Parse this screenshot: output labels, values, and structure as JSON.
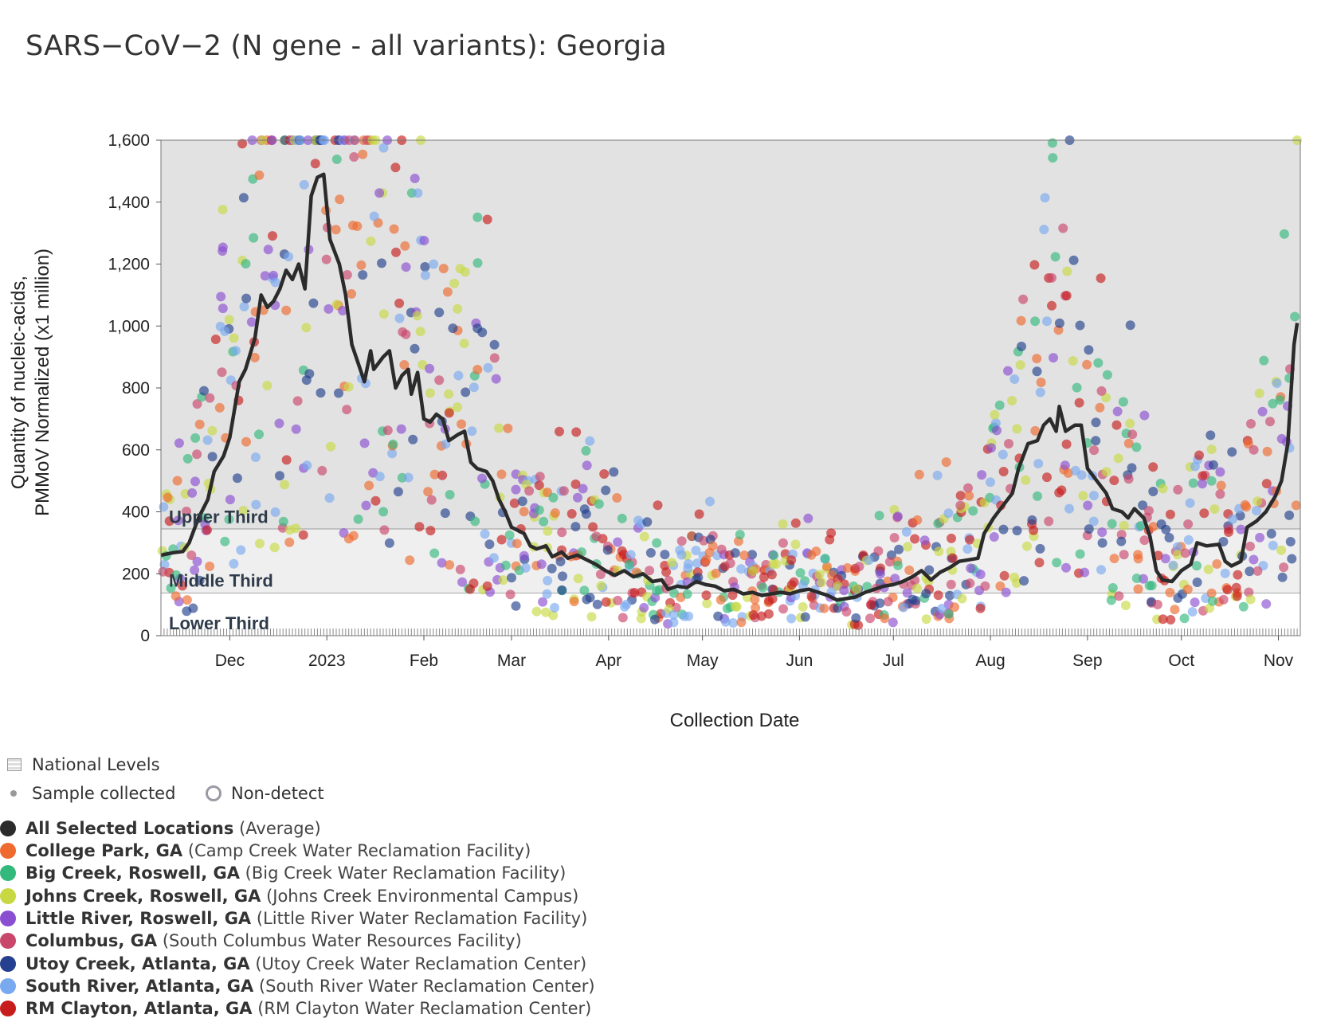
{
  "chart_data": {
    "type": "scatter",
    "title": "SARS−CoV−2 (N gene - all variants): Georgia",
    "xlabel": "Collection Date",
    "ylabel_lines": [
      "Quantity of nucleic-acids,",
      "PMMoV Normalized (x1 million)"
    ],
    "ylim": [
      0,
      1600
    ],
    "xlim": [
      "2022-11-09",
      "2023-11-08"
    ],
    "yticks": [
      0,
      200,
      400,
      600,
      800,
      1000,
      1200,
      1400,
      1600
    ],
    "ytick_labels": [
      "0",
      "200",
      "400",
      "600",
      "800",
      "1,000",
      "1,200",
      "1,400",
      "1,600"
    ],
    "xticks": [
      {
        "date": "2022-12-01",
        "label": "Dec"
      },
      {
        "date": "2023-01-01",
        "label": "2023"
      },
      {
        "date": "2023-02-01",
        "label": "Feb"
      },
      {
        "date": "2023-03-01",
        "label": "Mar"
      },
      {
        "date": "2023-04-01",
        "label": "Apr"
      },
      {
        "date": "2023-05-01",
        "label": "May"
      },
      {
        "date": "2023-06-01",
        "label": "Jun"
      },
      {
        "date": "2023-07-01",
        "label": "Jul"
      },
      {
        "date": "2023-08-01",
        "label": "Aug"
      },
      {
        "date": "2023-09-01",
        "label": "Sep"
      },
      {
        "date": "2023-10-01",
        "label": "Oct"
      },
      {
        "date": "2023-11-01",
        "label": "Nov"
      }
    ],
    "bands": [
      {
        "label": "Upper Third",
        "from": 344,
        "to": 1600,
        "color": "#e2e2e2"
      },
      {
        "label": "Middle Third",
        "from": 137,
        "to": 344,
        "color": "#efefef"
      },
      {
        "label": "Lower Third",
        "from": 0,
        "to": 137,
        "color": "#ffffff"
      }
    ],
    "grid": false,
    "legend_position": "bottom-left",
    "average_series": {
      "name": "All Selected Locations",
      "color": "#2b2b2b",
      "points": [
        [
          "2022-11-09",
          260
        ],
        [
          "2022-11-13",
          268
        ],
        [
          "2022-11-16",
          272
        ],
        [
          "2022-11-18",
          300
        ],
        [
          "2022-11-21",
          380
        ],
        [
          "2022-11-24",
          440
        ],
        [
          "2022-11-26",
          530
        ],
        [
          "2022-11-29",
          580
        ],
        [
          "2022-12-01",
          640
        ],
        [
          "2022-12-04",
          820
        ],
        [
          "2022-12-06",
          860
        ],
        [
          "2022-12-09",
          960
        ],
        [
          "2022-12-11",
          1100
        ],
        [
          "2022-12-13",
          1060
        ],
        [
          "2022-12-15",
          1080
        ],
        [
          "2022-12-17",
          1120
        ],
        [
          "2022-12-19",
          1180
        ],
        [
          "2022-12-21",
          1150
        ],
        [
          "2022-12-23",
          1200
        ],
        [
          "2022-12-25",
          1120
        ],
        [
          "2022-12-27",
          1420
        ],
        [
          "2022-12-29",
          1480
        ],
        [
          "2022-12-31",
          1490
        ],
        [
          "2023-01-02",
          1280
        ],
        [
          "2023-01-05",
          1200
        ],
        [
          "2023-01-07",
          1100
        ],
        [
          "2023-01-09",
          940
        ],
        [
          "2023-01-11",
          880
        ],
        [
          "2023-01-13",
          820
        ],
        [
          "2023-01-15",
          920
        ],
        [
          "2023-01-16",
          860
        ],
        [
          "2023-01-19",
          900
        ],
        [
          "2023-01-21",
          920
        ],
        [
          "2023-01-23",
          800
        ],
        [
          "2023-01-25",
          840
        ],
        [
          "2023-01-27",
          860
        ],
        [
          "2023-01-28",
          780
        ],
        [
          "2023-01-30",
          850
        ],
        [
          "2023-02-01",
          700
        ],
        [
          "2023-02-03",
          690
        ],
        [
          "2023-02-05",
          715
        ],
        [
          "2023-02-07",
          700
        ],
        [
          "2023-02-09",
          630
        ],
        [
          "2023-02-12",
          650
        ],
        [
          "2023-02-14",
          660
        ],
        [
          "2023-02-16",
          560
        ],
        [
          "2023-02-18",
          540
        ],
        [
          "2023-02-21",
          530
        ],
        [
          "2023-02-23",
          500
        ],
        [
          "2023-02-25",
          440
        ],
        [
          "2023-02-27",
          400
        ],
        [
          "2023-03-01",
          350
        ],
        [
          "2023-03-03",
          340
        ],
        [
          "2023-03-05",
          330
        ],
        [
          "2023-03-07",
          290
        ],
        [
          "2023-03-09",
          280
        ],
        [
          "2023-03-12",
          290
        ],
        [
          "2023-03-14",
          255
        ],
        [
          "2023-03-17",
          270
        ],
        [
          "2023-03-19",
          250
        ],
        [
          "2023-03-22",
          260
        ],
        [
          "2023-03-25",
          245
        ],
        [
          "2023-03-28",
          230
        ],
        [
          "2023-03-31",
          210
        ],
        [
          "2023-04-03",
          195
        ],
        [
          "2023-04-06",
          210
        ],
        [
          "2023-04-09",
          190
        ],
        [
          "2023-04-12",
          200
        ],
        [
          "2023-04-15",
          175
        ],
        [
          "2023-04-18",
          180
        ],
        [
          "2023-04-20",
          150
        ],
        [
          "2023-04-23",
          160
        ],
        [
          "2023-04-26",
          155
        ],
        [
          "2023-04-29",
          175
        ],
        [
          "2023-05-02",
          165
        ],
        [
          "2023-05-05",
          160
        ],
        [
          "2023-05-08",
          145
        ],
        [
          "2023-05-11",
          150
        ],
        [
          "2023-05-14",
          135
        ],
        [
          "2023-05-17",
          140
        ],
        [
          "2023-05-20",
          130
        ],
        [
          "2023-05-23",
          135
        ],
        [
          "2023-05-26",
          140
        ],
        [
          "2023-05-29",
          135
        ],
        [
          "2023-06-01",
          145
        ],
        [
          "2023-06-04",
          150
        ],
        [
          "2023-06-07",
          140
        ],
        [
          "2023-06-10",
          130
        ],
        [
          "2023-06-13",
          115
        ],
        [
          "2023-06-16",
          120
        ],
        [
          "2023-06-19",
          125
        ],
        [
          "2023-06-22",
          140
        ],
        [
          "2023-06-25",
          150
        ],
        [
          "2023-06-28",
          160
        ],
        [
          "2023-07-01",
          165
        ],
        [
          "2023-07-04",
          175
        ],
        [
          "2023-07-07",
          190
        ],
        [
          "2023-07-10",
          210
        ],
        [
          "2023-07-13",
          180
        ],
        [
          "2023-07-16",
          205
        ],
        [
          "2023-07-19",
          220
        ],
        [
          "2023-07-22",
          240
        ],
        [
          "2023-07-25",
          245
        ],
        [
          "2023-07-28",
          250
        ],
        [
          "2023-07-30",
          330
        ],
        [
          "2023-08-02",
          380
        ],
        [
          "2023-08-05",
          420
        ],
        [
          "2023-08-08",
          460
        ],
        [
          "2023-08-10",
          540
        ],
        [
          "2023-08-13",
          620
        ],
        [
          "2023-08-16",
          630
        ],
        [
          "2023-08-18",
          680
        ],
        [
          "2023-08-20",
          700
        ],
        [
          "2023-08-22",
          660
        ],
        [
          "2023-08-23",
          740
        ],
        [
          "2023-08-25",
          660
        ],
        [
          "2023-08-28",
          680
        ],
        [
          "2023-08-30",
          680
        ],
        [
          "2023-09-01",
          540
        ],
        [
          "2023-09-04",
          500
        ],
        [
          "2023-09-07",
          460
        ],
        [
          "2023-09-09",
          410
        ],
        [
          "2023-09-12",
          400
        ],
        [
          "2023-09-14",
          380
        ],
        [
          "2023-09-16",
          410
        ],
        [
          "2023-09-19",
          380
        ],
        [
          "2023-09-21",
          320
        ],
        [
          "2023-09-23",
          210
        ],
        [
          "2023-09-25",
          180
        ],
        [
          "2023-09-28",
          175
        ],
        [
          "2023-10-01",
          210
        ],
        [
          "2023-10-04",
          230
        ],
        [
          "2023-10-06",
          300
        ],
        [
          "2023-10-09",
          290
        ],
        [
          "2023-10-13",
          295
        ],
        [
          "2023-10-15",
          240
        ],
        [
          "2023-10-17",
          225
        ],
        [
          "2023-10-20",
          240
        ],
        [
          "2023-10-22",
          350
        ],
        [
          "2023-10-25",
          370
        ],
        [
          "2023-10-28",
          400
        ],
        [
          "2023-10-31",
          450
        ],
        [
          "2023-11-02",
          500
        ],
        [
          "2023-11-04",
          620
        ],
        [
          "2023-11-06",
          940
        ],
        [
          "2023-11-07",
          1010
        ]
      ]
    },
    "series": [
      {
        "name": "College Park, GA",
        "color": "#ee6a2e"
      },
      {
        "name": "Big Creek, Roswell, GA",
        "color": "#34b97c"
      },
      {
        "name": "Johns Creek, Roswell, GA",
        "color": "#c8d843"
      },
      {
        "name": "Little River, Roswell, GA",
        "color": "#8a4fd1"
      },
      {
        "name": "Columbus, GA",
        "color": "#c9476b"
      },
      {
        "name": "Utoy Creek, Atlanta, GA",
        "color": "#24408e"
      },
      {
        "name": "South River, Atlanta, GA",
        "color": "#79a9ef"
      },
      {
        "name": "RM Clayton, Atlanta, GA",
        "color": "#c81d1d"
      }
    ]
  },
  "legend": {
    "national_levels": "National Levels",
    "sample_collected": "Sample collected",
    "non_detect": "Non-detect",
    "average_name": "All Selected Locations",
    "average_note": "(Average)",
    "sites": [
      {
        "name": "College Park, GA",
        "facility": "(Camp Creek Water Reclamation Facility)",
        "color": "#ee6a2e"
      },
      {
        "name": "Big Creek, Roswell, GA",
        "facility": "(Big Creek Water Reclamation Facility)",
        "color": "#34b97c"
      },
      {
        "name": "Johns Creek, Roswell, GA",
        "facility": "(Johns Creek Environmental Campus)",
        "color": "#c8d843"
      },
      {
        "name": "Little River, Roswell, GA",
        "facility": "(Little River Water Reclamation Facility)",
        "color": "#8a4fd1"
      },
      {
        "name": "Columbus, GA",
        "facility": "(South Columbus Water Resources Facility)",
        "color": "#c9476b"
      },
      {
        "name": "Utoy Creek, Atlanta, GA",
        "facility": "(Utoy Creek Water Reclamation Center)",
        "color": "#24408e"
      },
      {
        "name": "South River, Atlanta, GA",
        "facility": "(South River Water Reclamation Center)",
        "color": "#79a9ef"
      },
      {
        "name": "RM Clayton, Atlanta, GA",
        "facility": "(RM Clayton Water Reclamation Center)",
        "color": "#c81d1d"
      }
    ]
  }
}
